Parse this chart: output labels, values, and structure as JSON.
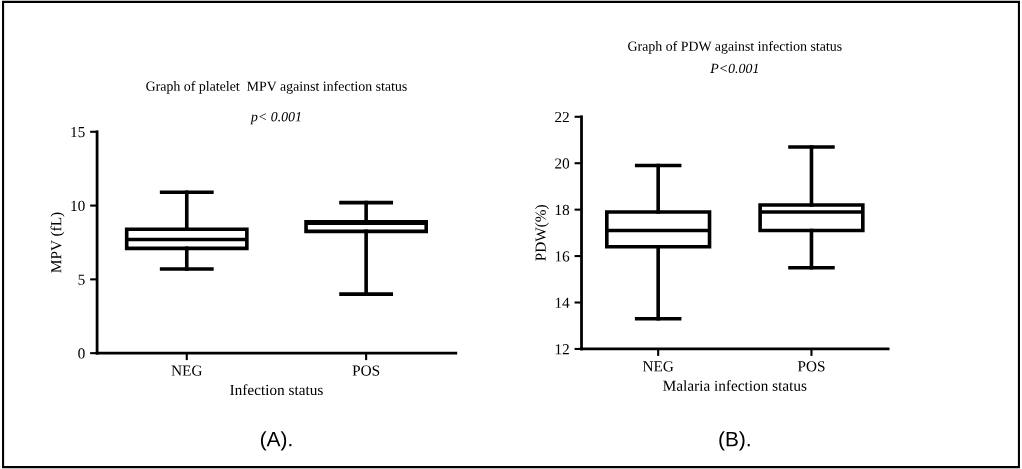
{
  "chart_data": [
    {
      "type": "box",
      "title": "Graph of platelet  MPV against infection status",
      "subtitle": "p< 0.001",
      "xlabel": "Infection status",
      "ylabel": "MPV (fL)",
      "categories": [
        "NEG",
        "POS"
      ],
      "boxes": [
        {
          "low": 5.7,
          "q1": 7.1,
          "median": 7.7,
          "q3": 8.4,
          "high": 10.9
        },
        {
          "low": 4.0,
          "q1": 8.25,
          "median": 8.8,
          "q3": 8.9,
          "high": 10.2
        }
      ],
      "ylim": [
        0,
        15
      ],
      "yticks": [
        0,
        5,
        10,
        15
      ],
      "grid": false,
      "annotations": [
        "(A)."
      ]
    },
    {
      "type": "box",
      "title": "Graph of PDW against infection status",
      "subtitle": "P<0.001",
      "xlabel": "Malaria infection status",
      "ylabel": "PDW(%)",
      "categories": [
        "NEG",
        "POS"
      ],
      "boxes": [
        {
          "low": 13.3,
          "q1": 16.4,
          "median": 17.1,
          "q3": 17.9,
          "high": 19.9
        },
        {
          "low": 15.5,
          "q1": 17.1,
          "median": 17.9,
          "q3": 18.2,
          "high": 20.7
        }
      ],
      "ylim": [
        12,
        22
      ],
      "yticks": [
        12,
        14,
        16,
        18,
        20,
        22
      ],
      "grid": false,
      "annotations": [
        "(B)."
      ]
    }
  ]
}
